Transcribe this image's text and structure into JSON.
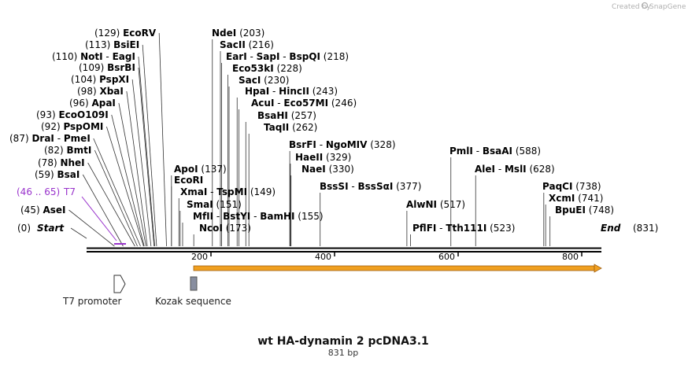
{
  "header": {
    "credit": "Created by",
    "brand": "SnapGene"
  },
  "map": {
    "title": "wt HA-dynamin 2 pcDNA3.1",
    "length_label": "831 bp",
    "length": 831,
    "start_label": "Start",
    "start_pos": "(0)",
    "end_label": "End",
    "end_pos": "(831)",
    "ticks": [
      "200",
      "400",
      "600",
      "800"
    ]
  },
  "colors": {
    "feature": "#9933cc",
    "orf": "#f0a020",
    "orf_stroke": "#a06010"
  },
  "features": [
    {
      "name": "T7",
      "range": "(46 .. 65)"
    }
  ],
  "sites": [
    {
      "pos": "(45)",
      "parts": [
        {
          "t": "AseI"
        }
      ]
    },
    {
      "pos": "(59)",
      "parts": [
        {
          "t": "BsaI"
        }
      ]
    },
    {
      "pos": "(78)",
      "parts": [
        {
          "t": "NheI"
        }
      ]
    },
    {
      "pos": "(82)",
      "parts": [
        {
          "t": "BmtI"
        }
      ]
    },
    {
      "pos": "(87)",
      "parts": [
        {
          "t": "DraI"
        },
        {
          "t": "PmeI"
        }
      ]
    },
    {
      "pos": "(92)",
      "parts": [
        {
          "t": "PspOMI"
        }
      ]
    },
    {
      "pos": "(93)",
      "parts": [
        {
          "t": "EcoO109I"
        }
      ]
    },
    {
      "pos": "(96)",
      "parts": [
        {
          "t": "ApaI"
        }
      ]
    },
    {
      "pos": "(98)",
      "parts": [
        {
          "t": "XbaI"
        }
      ]
    },
    {
      "pos": "(104)",
      "parts": [
        {
          "t": "PspXI"
        }
      ]
    },
    {
      "pos": "(109)",
      "parts": [
        {
          "t": "BsrBI"
        }
      ]
    },
    {
      "pos": "(110)",
      "parts": [
        {
          "t": "NotI"
        },
        {
          "t": "EagI"
        }
      ]
    },
    {
      "pos": "(113)",
      "parts": [
        {
          "t": "BsiEI"
        }
      ]
    },
    {
      "pos": "(129)",
      "parts": [
        {
          "t": "EcoRV"
        }
      ]
    },
    {
      "pos": "(137)",
      "parts": [
        {
          "t": "ApoI"
        }
      ]
    },
    {
      "pos": "",
      "parts": [
        {
          "t": "EcoRI"
        }
      ]
    },
    {
      "pos": "(149)",
      "parts": [
        {
          "t": "XmaI"
        },
        {
          "t": "TspMI"
        }
      ]
    },
    {
      "pos": "(151)",
      "parts": [
        {
          "t": "SmaI"
        }
      ]
    },
    {
      "pos": "(155)",
      "parts": [
        {
          "t": "MfII"
        },
        {
          "t": "BstYI"
        },
        {
          "t": "BamHI"
        }
      ]
    },
    {
      "pos": "(173)",
      "parts": [
        {
          "t": "NcoI"
        }
      ]
    },
    {
      "pos": "(203)",
      "parts": [
        {
          "t": "NdeI"
        }
      ]
    },
    {
      "pos": "(216)",
      "parts": [
        {
          "t": "SacII"
        }
      ]
    },
    {
      "pos": "(218)",
      "parts": [
        {
          "t": "EarI"
        },
        {
          "t": "SapI"
        },
        {
          "t": "BspQI"
        }
      ]
    },
    {
      "pos": "(228)",
      "parts": [
        {
          "t": "Eco53kI"
        }
      ]
    },
    {
      "pos": "(230)",
      "parts": [
        {
          "t": "SacI"
        }
      ]
    },
    {
      "pos": "(243)",
      "parts": [
        {
          "t": "HpaI"
        },
        {
          "t": "HincII"
        }
      ]
    },
    {
      "pos": "(246)",
      "parts": [
        {
          "t": "AcuI"
        },
        {
          "t": "Eco57MI"
        }
      ]
    },
    {
      "pos": "(257)",
      "parts": [
        {
          "t": "BsaHI"
        }
      ]
    },
    {
      "pos": "(262)",
      "parts": [
        {
          "t": "TaqII"
        }
      ]
    },
    {
      "pos": "(328)",
      "parts": [
        {
          "t": "BsrFI"
        },
        {
          "t": "NgoMIV"
        }
      ]
    },
    {
      "pos": "(329)",
      "parts": [
        {
          "t": "HaeII"
        }
      ]
    },
    {
      "pos": "(330)",
      "parts": [
        {
          "t": "NaeI"
        }
      ]
    },
    {
      "pos": "(377)",
      "parts": [
        {
          "t": "BssSI"
        },
        {
          "t": "BssSαI"
        }
      ]
    },
    {
      "pos": "(517)",
      "parts": [
        {
          "t": "AlwNI"
        }
      ]
    },
    {
      "pos": "(523)",
      "parts": [
        {
          "t": "PflFI"
        },
        {
          "t": "Tth111I"
        }
      ]
    },
    {
      "pos": "(588)",
      "parts": [
        {
          "t": "PmlI"
        },
        {
          "t": "BsaAI"
        }
      ]
    },
    {
      "pos": "(628)",
      "parts": [
        {
          "t": "AleI"
        },
        {
          "t": "MslI"
        }
      ]
    },
    {
      "pos": "(738)",
      "parts": [
        {
          "t": "PaqCI"
        }
      ]
    },
    {
      "pos": "(741)",
      "parts": [
        {
          "t": "XcmI"
        }
      ]
    },
    {
      "pos": "(748)",
      "parts": [
        {
          "t": "BpuEI"
        }
      ]
    }
  ],
  "legend": [
    {
      "label": "T7 promoter",
      "icon": "promoter-arrow-icon"
    },
    {
      "label": "Kozak sequence",
      "icon": "kozak-box-icon"
    }
  ]
}
